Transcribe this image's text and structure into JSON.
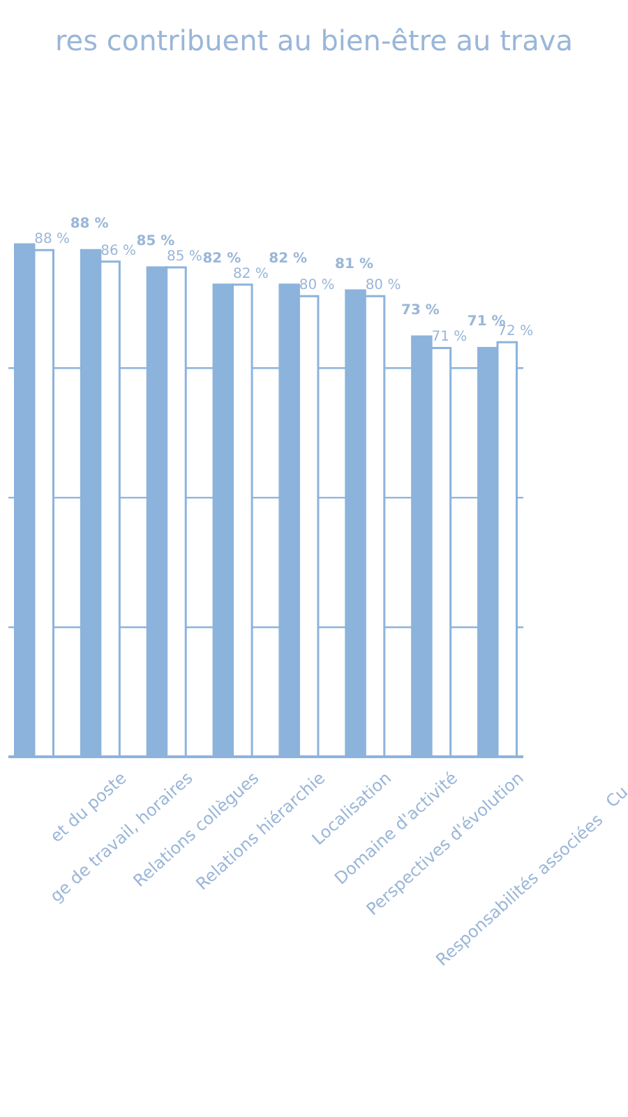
{
  "chart_data": {
    "type": "bar",
    "title": "res contribuent au bien-être au trava",
    "categories": [
      null,
      "et du poste",
      "ge de travail, horaires",
      "Relations collègues",
      "Relations hiérarchie",
      "Localisation",
      "Domaine d'activité",
      "Perspectives d'évolution"
    ],
    "series": [
      {
        "color": "#8cb3dc",
        "values": [
          89,
          88,
          85,
          82,
          82,
          81,
          73,
          71
        ],
        "value_labels": [
          null,
          "88 %",
          "85 %",
          "82 %",
          "82 %",
          "81 %",
          "73 %",
          "71 %"
        ]
      },
      {
        "color": "#ffffff",
        "values": [
          88,
          86,
          85,
          82,
          80,
          80,
          71,
          72
        ],
        "value_labels": [
          "88 %",
          "86 %",
          "85 %",
          "82 %",
          "80 %",
          "80 %",
          "71 %",
          "72 %"
        ]
      }
    ],
    "ref_lines": [
      {
        "axis": "y",
        "value": 22.5
      },
      {
        "axis": "y",
        "value": 45
      },
      {
        "axis": "y",
        "value": 67.5
      }
    ],
    "annotations": [
      "Responsabilités associées",
      "Cu"
    ]
  }
}
